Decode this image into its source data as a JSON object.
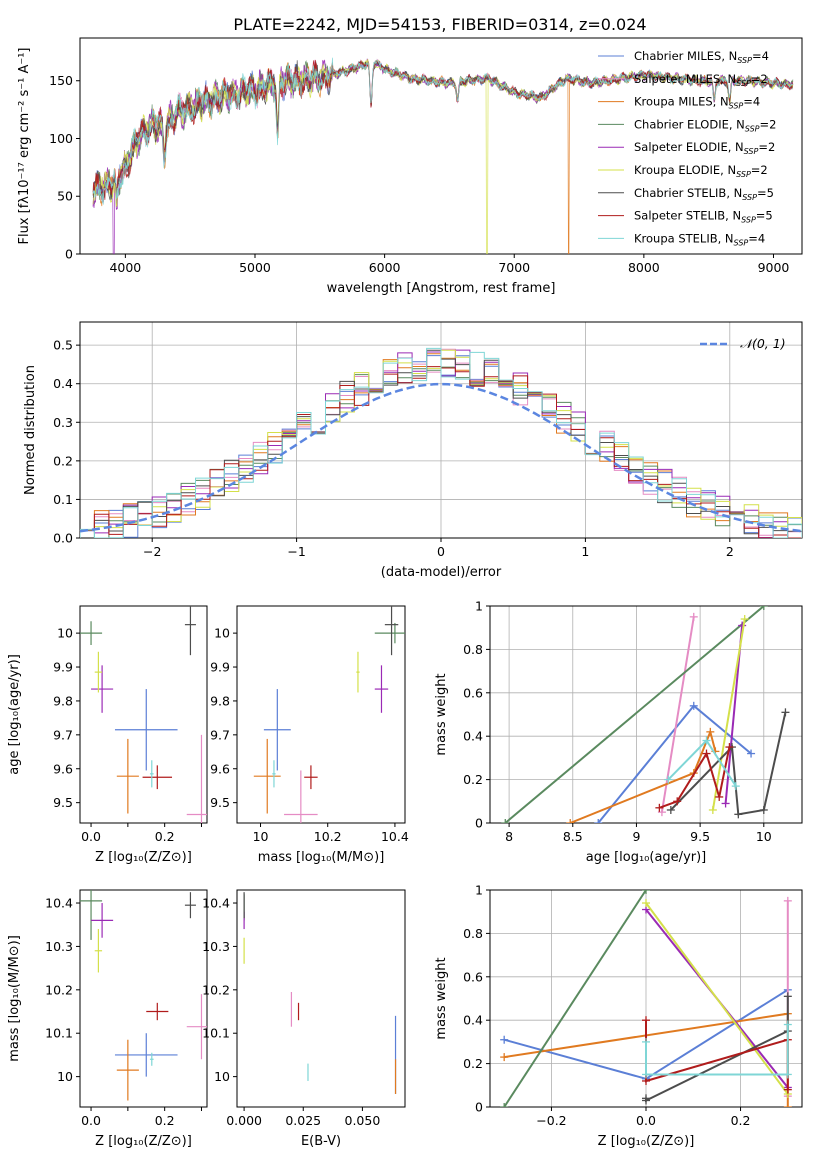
{
  "figure_title": "PLATE=2242, MJD=54153, FIBERID=0314, z=0.024",
  "series": [
    {
      "name": "Chabrier MILES, N_SSP=4",
      "label_main": "Chabrier MILES, N",
      "label_sub": "SSP",
      "label_tail": "=4",
      "color": "#5b7fd6"
    },
    {
      "name": "Salpeter MILES, N_SSP=2",
      "label_main": "Salpeter MILES, N",
      "label_sub": "SSP",
      "label_tail": "=2",
      "color": "#e58cc4"
    },
    {
      "name": "Kroupa MILES, N_SSP=4",
      "label_main": "Kroupa MILES, N",
      "label_sub": "SSP",
      "label_tail": "=4",
      "color": "#e07a20"
    },
    {
      "name": "Chabrier ELODIE, N_SSP=2",
      "label_main": "Chabrier ELODIE, N",
      "label_sub": "SSP",
      "label_tail": "=2",
      "color": "#5a8a5f"
    },
    {
      "name": "Salpeter ELODIE, N_SSP=2",
      "label_main": "Salpeter ELODIE, N",
      "label_sub": "SSP",
      "label_tail": "=2",
      "color": "#9a2ab5"
    },
    {
      "name": "Kroupa ELODIE, N_SSP=2",
      "label_main": "Kroupa ELODIE, N",
      "label_sub": "SSP",
      "label_tail": "=2",
      "color": "#d4e04a"
    },
    {
      "name": "Chabrier STELIB, N_SSP=5",
      "label_main": "Chabrier STELIB, N",
      "label_sub": "SSP",
      "label_tail": "=5",
      "color": "#4d4d4d"
    },
    {
      "name": "Salpeter STELIB, N_SSP=5",
      "label_main": "Salpeter STELIB, N",
      "label_sub": "SSP",
      "label_tail": "=5",
      "color": "#b01c1c"
    },
    {
      "name": "Kroupa STELIB, N_SSP=4",
      "label_main": "Kroupa STELIB, N",
      "label_sub": "SSP",
      "label_tail": "=4",
      "color": "#7fd6d6"
    }
  ],
  "chart_data": [
    {
      "id": "spectrum",
      "type": "line",
      "xlabel": "wavelength [Angstrom, rest frame]",
      "ylabel": "Flux [fλ10⁻¹⁷ erg cm⁻² s⁻¹ A⁻¹]",
      "xlim": [
        3650,
        9220
      ],
      "ylim": [
        0,
        187
      ],
      "xticks": [
        4000,
        5000,
        6000,
        7000,
        8000,
        9000
      ],
      "yticks": [
        0,
        50,
        100,
        150
      ],
      "grid": false,
      "legend": "upper right",
      "continuum_wavelength": [
        3750,
        3900,
        4000,
        4100,
        4200,
        4300,
        4400,
        4600,
        4800,
        5000,
        5200,
        5500,
        5800,
        5900,
        6000,
        6200,
        6500,
        6800,
        7000,
        7200,
        7400,
        7600,
        8000,
        8400,
        8800,
        9100
      ],
      "continuum_flux": [
        55,
        62,
        75,
        100,
        112,
        110,
        122,
        132,
        138,
        142,
        150,
        152,
        162,
        167,
        160,
        152,
        148,
        152,
        140,
        135,
        152,
        148,
        155,
        150,
        150,
        147
      ],
      "dips": [
        [
          3934,
          22
        ],
        [
          4300,
          25
        ],
        [
          5175,
          45
        ],
        [
          5895,
          38
        ],
        [
          6563,
          15
        ],
        [
          8542,
          18
        ],
        [
          8662,
          18
        ]
      ],
      "dropouts": [
        [
          3910,
          "Salpeter ELODIE, N_SSP=2"
        ],
        [
          6790,
          "Kroupa ELODIE, N_SSP=2"
        ],
        [
          7420,
          "Kroupa MILES, N_SSP=4"
        ]
      ]
    },
    {
      "id": "residual_hist",
      "type": "histogram",
      "xlabel": "(data-model)/error",
      "ylabel": "Normed distribution",
      "xlim": [
        -2.5,
        2.5
      ],
      "ylim": [
        0,
        0.56
      ],
      "xticks": [
        -2,
        -1,
        0,
        1,
        2
      ],
      "yticks": [
        0.0,
        0.1,
        0.2,
        0.3,
        0.4,
        0.5
      ],
      "grid": true,
      "legend": "upper right",
      "reference_label": "𝒩(0, 1)",
      "reference_color": "#5b86e0",
      "bin_width": 0.1,
      "bin_start": -2.5
    },
    {
      "id": "age_vs_Z",
      "type": "errorbar",
      "xlabel": "Z [log₁₀(Z/Z⊙)]",
      "ylabel": "age  [log₁₀(age/yr)]",
      "xlim": [
        -0.03,
        0.315
      ],
      "ylim": [
        9.44,
        10.08
      ],
      "xticks": [
        0.0,
        0.1,
        0.2,
        0.3
      ],
      "xtick_labels": [
        "0.0",
        "",
        "0.2",
        ""
      ],
      "yticks": [
        9.5,
        9.6,
        9.7,
        9.8,
        9.9,
        10.0
      ],
      "grid": false,
      "points": [
        {
          "series": 0,
          "x": 0.15,
          "y": 9.715,
          "xerr": 0.085,
          "yerr": 0.12
        },
        {
          "series": 1,
          "x": 0.3,
          "y": 9.465,
          "xerr": 0.04,
          "yerr": 0.235
        },
        {
          "series": 2,
          "x": 0.1,
          "y": 9.578,
          "xerr": 0.03,
          "yerr": 0.11
        },
        {
          "series": 3,
          "x": 0.0,
          "y": 10.0,
          "xerr": 0.03,
          "yerr": 0.035
        },
        {
          "series": 4,
          "x": 0.03,
          "y": 9.835,
          "xerr": 0.03,
          "yerr": 0.07
        },
        {
          "series": 5,
          "x": 0.02,
          "y": 9.885,
          "xerr": 0.01,
          "yerr": 0.06
        },
        {
          "series": 6,
          "x": 0.27,
          "y": 10.025,
          "xerr": 0.015,
          "yerr": 0.09
        },
        {
          "series": 7,
          "x": 0.18,
          "y": 9.575,
          "xerr": 0.04,
          "yerr": 0.035
        },
        {
          "series": 8,
          "x": 0.165,
          "y": 9.585,
          "xerr": 0.005,
          "yerr": 0.04
        }
      ]
    },
    {
      "id": "age_vs_mass",
      "type": "errorbar",
      "xlabel": "mass [log₁₀(M/M⊙)]",
      "ylabel": "",
      "xlim": [
        9.93,
        10.43
      ],
      "ylim": [
        9.44,
        10.08
      ],
      "xticks": [
        10.0,
        10.2,
        10.4
      ],
      "yticks": [
        9.5,
        9.6,
        9.7,
        9.8,
        9.9,
        10.0
      ],
      "grid": false,
      "points": [
        {
          "series": 0,
          "x": 10.05,
          "y": 9.715,
          "xerr": 0.04,
          "yerr": 0.12
        },
        {
          "series": 1,
          "x": 10.12,
          "y": 9.465,
          "xerr": 0.05,
          "yerr": 0.13
        },
        {
          "series": 2,
          "x": 10.02,
          "y": 9.578,
          "xerr": 0.04,
          "yerr": 0.11
        },
        {
          "series": 3,
          "x": 10.4,
          "y": 10.0,
          "xerr": 0.06,
          "yerr": 0.03
        },
        {
          "series": 4,
          "x": 10.36,
          "y": 9.835,
          "xerr": 0.02,
          "yerr": 0.07
        },
        {
          "series": 5,
          "x": 10.29,
          "y": 9.885,
          "xerr": 0.005,
          "yerr": 0.06
        },
        {
          "series": 6,
          "x": 10.39,
          "y": 10.025,
          "xerr": 0.02,
          "yerr": 0.09
        },
        {
          "series": 7,
          "x": 10.15,
          "y": 9.575,
          "xerr": 0.02,
          "yerr": 0.035
        },
        {
          "series": 8,
          "x": 10.04,
          "y": 9.585,
          "xerr": 0.005,
          "yerr": 0.04
        }
      ]
    },
    {
      "id": "weight_vs_age",
      "type": "line",
      "xlabel": "age  [log₁₀(age/yr)]",
      "ylabel": "mass weight",
      "xlim": [
        7.85,
        10.3
      ],
      "ylim": [
        0,
        1
      ],
      "xticks": [
        8.0,
        8.5,
        9.0,
        9.5,
        10.0
      ],
      "yticks": [
        0.0,
        0.2,
        0.4,
        0.6,
        0.8,
        1.0
      ],
      "grid": true,
      "lines": [
        {
          "series": 0,
          "x": [
            8.7,
            9.45,
            9.9
          ],
          "y": [
            0.0,
            0.54,
            0.32
          ]
        },
        {
          "series": 1,
          "x": [
            9.2,
            9.45
          ],
          "y": [
            0.05,
            0.95
          ]
        },
        {
          "series": 2,
          "x": [
            8.48,
            9.45,
            9.58,
            9.62
          ],
          "y": [
            0.0,
            0.23,
            0.42,
            0.33
          ]
        },
        {
          "series": 3,
          "x": [
            7.97,
            10.0
          ],
          "y": [
            0.0,
            1.0
          ]
        },
        {
          "series": 4,
          "x": [
            9.7,
            9.83
          ],
          "y": [
            0.09,
            0.91
          ]
        },
        {
          "series": 5,
          "x": [
            9.6,
            9.85
          ],
          "y": [
            0.06,
            0.94
          ]
        },
        {
          "series": 6,
          "x": [
            9.27,
            9.75,
            9.8,
            10.0,
            10.17
          ],
          "y": [
            0.06,
            0.35,
            0.04,
            0.06,
            0.51
          ]
        },
        {
          "series": 7,
          "x": [
            9.18,
            9.32,
            9.55,
            9.65,
            9.73
          ],
          "y": [
            0.07,
            0.1,
            0.32,
            0.12,
            0.35
          ]
        },
        {
          "series": 8,
          "x": [
            9.25,
            9.55,
            9.78
          ],
          "y": [
            0.2,
            0.38,
            0.17
          ]
        }
      ]
    },
    {
      "id": "mass_vs_Z",
      "type": "errorbar",
      "xlabel": "Z [log₁₀(Z/Z⊙)]",
      "ylabel": "mass [log₁₀(M/M⊙)]",
      "xlim": [
        -0.03,
        0.315
      ],
      "ylim": [
        9.93,
        10.43
      ],
      "xticks": [
        0.0,
        0.1,
        0.2,
        0.3
      ],
      "xtick_labels": [
        "0.0",
        "",
        "0.2",
        ""
      ],
      "yticks": [
        10.0,
        10.1,
        10.2,
        10.3,
        10.4
      ],
      "grid": false,
      "points": [
        {
          "series": 0,
          "x": 0.15,
          "y": 10.05,
          "xerr": 0.085,
          "yerr": 0.05
        },
        {
          "series": 1,
          "x": 0.3,
          "y": 10.115,
          "xerr": 0.04,
          "yerr": 0.075
        },
        {
          "series": 2,
          "x": 0.1,
          "y": 10.015,
          "xerr": 0.03,
          "yerr": 0.07
        },
        {
          "series": 3,
          "x": 0.0,
          "y": 10.405,
          "xerr": 0.03,
          "yerr": 0.09
        },
        {
          "series": 4,
          "x": 0.03,
          "y": 10.36,
          "xerr": 0.03,
          "yerr": 0.04
        },
        {
          "series": 5,
          "x": 0.02,
          "y": 10.29,
          "xerr": 0.01,
          "yerr": 0.05
        },
        {
          "series": 6,
          "x": 0.27,
          "y": 10.395,
          "xerr": 0.015,
          "yerr": 0.03
        },
        {
          "series": 7,
          "x": 0.18,
          "y": 10.15,
          "xerr": 0.03,
          "yerr": 0.02
        },
        {
          "series": 8,
          "x": 0.165,
          "y": 10.04,
          "xerr": 0.005,
          "yerr": 0.015
        }
      ]
    },
    {
      "id": "mass_vs_ebv",
      "type": "errorbar",
      "xlabel": "E(B-V)",
      "ylabel": "",
      "xlim": [
        -0.003,
        0.068
      ],
      "ylim": [
        9.93,
        10.43
      ],
      "xticks": [
        0.0,
        0.025,
        0.05
      ],
      "xtick_labels": [
        "0.000",
        "0.025",
        "0.050"
      ],
      "yticks": [
        10.0,
        10.1,
        10.2,
        10.3,
        10.4
      ],
      "grid": false,
      "points": [
        {
          "series": 0,
          "x": 0.064,
          "y": 10.05,
          "xerr": 0,
          "yerr": 0.09
        },
        {
          "series": 1,
          "x": 0.02,
          "y": 10.155,
          "xerr": 0,
          "yerr": 0.04
        },
        {
          "series": 2,
          "x": 0.064,
          "y": 10.0,
          "xerr": 0,
          "yerr": 0.04
        },
        {
          "series": 3,
          "x": 0.0,
          "y": 10.39,
          "xerr": 0,
          "yerr": 0.03
        },
        {
          "series": 4,
          "x": 0.0,
          "y": 10.36,
          "xerr": 0,
          "yerr": 0.02
        },
        {
          "series": 5,
          "x": 0.0,
          "y": 10.29,
          "xerr": 0,
          "yerr": 0.03
        },
        {
          "series": 6,
          "x": 0.0,
          "y": 10.395,
          "xerr": 0,
          "yerr": 0.03
        },
        {
          "series": 7,
          "x": 0.023,
          "y": 10.15,
          "xerr": 0,
          "yerr": 0.02
        },
        {
          "series": 8,
          "x": 0.027,
          "y": 10.01,
          "xerr": 0,
          "yerr": 0.02
        }
      ]
    },
    {
      "id": "weight_vs_Z",
      "type": "line",
      "xlabel": "Z [log₁₀(Z/Z⊙)]",
      "ylabel": "mass weight",
      "xlim": [
        -0.33,
        0.33
      ],
      "ylim": [
        0,
        1
      ],
      "xticks": [
        -0.2,
        0.0,
        0.2
      ],
      "xtick_labels": [
        "−0.2",
        "0.0",
        "0.2"
      ],
      "yticks": [
        0.0,
        0.2,
        0.4,
        0.6,
        0.8,
        1.0
      ],
      "grid": true,
      "lines": [
        {
          "series": 0,
          "x": [
            -0.3,
            0.0,
            0.3
          ],
          "y": [
            0.31,
            0.13,
            0.54
          ]
        },
        {
          "series": 1,
          "x": [
            0.3,
            0.3
          ],
          "y": [
            0.05,
            0.95
          ]
        },
        {
          "series": 2,
          "x": [
            -0.3,
            0.3,
            0.3
          ],
          "y": [
            0.23,
            0.43,
            0.0
          ]
        },
        {
          "series": 3,
          "x": [
            -0.3,
            0.0
          ],
          "y": [
            0.0,
            1.0
          ]
        },
        {
          "series": 4,
          "x": [
            0.0,
            0.3
          ],
          "y": [
            0.91,
            0.09
          ]
        },
        {
          "series": 5,
          "x": [
            0.0,
            0.3
          ],
          "y": [
            0.94,
            0.06
          ]
        },
        {
          "series": 6,
          "x": [
            0.0,
            0.0,
            0.3,
            0.3
          ],
          "y": [
            0.04,
            0.03,
            0.35,
            0.51
          ]
        },
        {
          "series": 7,
          "x": [
            0.0,
            0.0,
            0.3,
            0.3
          ],
          "y": [
            0.4,
            0.12,
            0.31,
            0.08
          ]
        },
        {
          "series": 8,
          "x": [
            0.0,
            0.0,
            0.3,
            0.3
          ],
          "y": [
            0.3,
            0.15,
            0.15,
            0.38
          ]
        }
      ]
    }
  ]
}
